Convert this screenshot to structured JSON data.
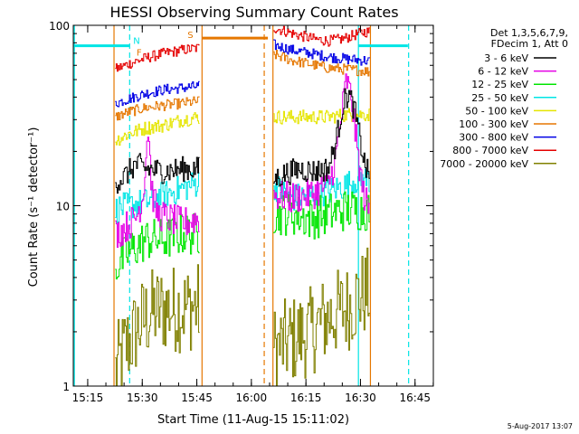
{
  "chart_data": {
    "type": "line",
    "title": "HESSI Observing Summary Count Rates",
    "xlabel": "Start Time (11-Aug-15 15:11:02)",
    "ylabel": "Count Rate (s⁻¹ detector⁻¹)",
    "x_unit": "minutes after 15:11:02",
    "xlim": [
      0,
      99
    ],
    "ylim": [
      1,
      100
    ],
    "y_scale": "log",
    "x_ticks": [
      "15:15",
      "15:30",
      "15:45",
      "16:00",
      "16:15",
      "16:30",
      "16:45"
    ],
    "y_ticks": [
      "1",
      "10",
      "100"
    ],
    "legend_header": [
      "Det 1,3,5,6,7,9,",
      "FDecim 1, Att 0"
    ],
    "legend_position": "right",
    "footer": "5-Aug-2017 13:07",
    "annotations": [
      {
        "text": "N",
        "color": "#00e5e5",
        "x": 17.4,
        "y": 79
      },
      {
        "text": "F",
        "color": "#e57700",
        "x": 18.1,
        "y": 68
      },
      {
        "text": "S",
        "color": "#e57700",
        "x": 32.2,
        "y": 85
      }
    ],
    "bands": [
      {
        "color": "#00e5e5",
        "x": [
          0,
          15.5
        ],
        "y": 77
      },
      {
        "color": "#e57700",
        "x": [
          35.4,
          53.5
        ],
        "y": 85
      },
      {
        "color": "#00e5e5",
        "x": [
          78.4,
          92
        ],
        "y": 77
      }
    ],
    "vlines": [
      {
        "color": "#00e5e5",
        "x": 0.3,
        "style": "solid"
      },
      {
        "color": "#e57700",
        "x": 11.2,
        "style": "solid"
      },
      {
        "color": "#00e5e5",
        "x": 15.5,
        "style": "dashed"
      },
      {
        "color": "#e57700",
        "x": 35.4,
        "style": "solid"
      },
      {
        "color": "#e57700",
        "x": 52.5,
        "style": "dashed"
      },
      {
        "color": "#e57700",
        "x": 54.9,
        "style": "solid"
      },
      {
        "color": "#00e5e5",
        "x": 78.4,
        "style": "solid"
      },
      {
        "color": "#e57700",
        "x": 81.7,
        "style": "solid"
      },
      {
        "color": "#00e5e5",
        "x": 92.2,
        "style": "dashed"
      }
    ],
    "series": [
      {
        "name": "3 - 6 keV",
        "color": "#000000",
        "noise": 0.07,
        "segments": [
          {
            "x": [
              11.5,
              14,
              17,
              20,
              25,
              30,
              34.5
            ],
            "y": [
              13.5,
              14.5,
              17,
              16,
              15.5,
              16,
              16
            ]
          },
          {
            "x": [
              55,
              58,
              62,
              66,
              70,
              72,
              74,
              75.5,
              77,
              78.5,
              80,
              81.5
            ],
            "y": [
              14,
              15,
              16,
              15.5,
              16,
              22,
              36,
              42,
              35,
              25,
              17,
              14
            ]
          }
        ]
      },
      {
        "name": "6 - 12 keV",
        "color": "#e500e5",
        "noise": 0.09,
        "segments": [
          {
            "x": [
              11.5,
              14,
              17,
              19,
              20.5,
              21.5,
              23,
              26,
              30,
              34.5
            ],
            "y": [
              7,
              7.5,
              8.5,
              11,
              28,
              12,
              9,
              8.5,
              8,
              8.5
            ]
          },
          {
            "x": [
              55,
              60,
              65,
              70,
              72,
              73.5,
              75,
              76.5,
              78,
              79.5,
              81.5
            ],
            "y": [
              11.5,
              11,
              11.5,
              13,
              18,
              30,
              50,
              38,
              20,
              12,
              9
            ]
          }
        ]
      },
      {
        "name": "12 - 25 keV",
        "color": "#00e500",
        "noise": 0.12,
        "segments": [
          {
            "x": [
              11.5,
              15,
              20,
              25,
              30,
              34.5
            ],
            "y": [
              4.5,
              5.5,
              6.5,
              6.5,
              7,
              7
            ]
          },
          {
            "x": [
              55,
              60,
              65,
              70,
              75,
              80,
              81.5
            ],
            "y": [
              9,
              9,
              8.5,
              9,
              9.5,
              9.5,
              9.5
            ]
          }
        ]
      },
      {
        "name": "25 - 50 keV",
        "color": "#00e5e5",
        "noise": 0.08,
        "segments": [
          {
            "x": [
              11.5,
              15,
              20,
              25,
              30,
              34.5
            ],
            "y": [
              9.5,
              10,
              10.5,
              11.5,
              12.5,
              13.5
            ]
          },
          {
            "x": [
              55,
              60,
              65,
              70,
              75,
              78,
              81.5
            ],
            "y": [
              13,
              11,
              11.5,
              12,
              13,
              14,
              14
            ]
          }
        ]
      },
      {
        "name": "50 - 100 keV",
        "color": "#e5e500",
        "noise": 0.04,
        "segments": [
          {
            "x": [
              11.5,
              15,
              20,
              25,
              30,
              34.5
            ],
            "y": [
              23,
              25,
              27,
              28,
              30,
              31
            ]
          },
          {
            "x": [
              55,
              60,
              65,
              70,
              75,
              80,
              81.5
            ],
            "y": [
              31,
              31,
              31,
              31,
              32,
              32,
              32
            ]
          }
        ]
      },
      {
        "name": "100 - 300 keV",
        "color": "#e57700",
        "noise": 0.03,
        "segments": [
          {
            "x": [
              11.5,
              15,
              20,
              25,
              30,
              34.5
            ],
            "y": [
              31,
              33,
              35,
              36,
              37,
              38
            ]
          },
          {
            "x": [
              55,
              60,
              65,
              70,
              75,
              80,
              81.5
            ],
            "y": [
              69,
              64,
              61,
              58,
              57,
              56,
              55
            ]
          }
        ]
      },
      {
        "name": "300 - 800 keV",
        "color": "#0000e5",
        "noise": 0.03,
        "segments": [
          {
            "x": [
              11.5,
              15,
              20,
              25,
              30,
              34.5
            ],
            "y": [
              37,
              39,
              42,
              44,
              45,
              46
            ]
          },
          {
            "x": [
              55,
              60,
              65,
              70,
              75,
              80,
              81.5
            ],
            "y": [
              78,
              73,
              70,
              67,
              65,
              64,
              63
            ]
          }
        ]
      },
      {
        "name": "800 - 7000 keV",
        "color": "#e50000",
        "noise": 0.03,
        "segments": [
          {
            "x": [
              11.5,
              15,
              20,
              25,
              30,
              34.5
            ],
            "y": [
              57,
              61,
              66,
              70,
              73,
              75
            ]
          },
          {
            "x": [
              55,
              58,
              62,
              66,
              70,
              74,
              77,
              80,
              81.5
            ],
            "y": [
              97,
              93,
              88,
              84,
              82,
              84,
              88,
              92,
              92
            ]
          }
        ]
      },
      {
        "name": "7000 - 20000 keV",
        "color": "#808000",
        "noise": 0.25,
        "segments": [
          {
            "x": [
              11.5,
              14,
              17,
              19,
              22,
              26,
              30,
              34.5
            ],
            "y": [
              1.2,
              1.6,
              2.0,
              2.3,
              2.6,
              2.7,
              2.7,
              2.8
            ]
          },
          {
            "x": [
              55,
              60,
              65,
              70,
              75,
              78,
              81.5
            ],
            "y": [
              1.6,
              1.8,
              2.0,
              2.4,
              2.7,
              3.1,
              3.4
            ]
          }
        ]
      }
    ]
  }
}
